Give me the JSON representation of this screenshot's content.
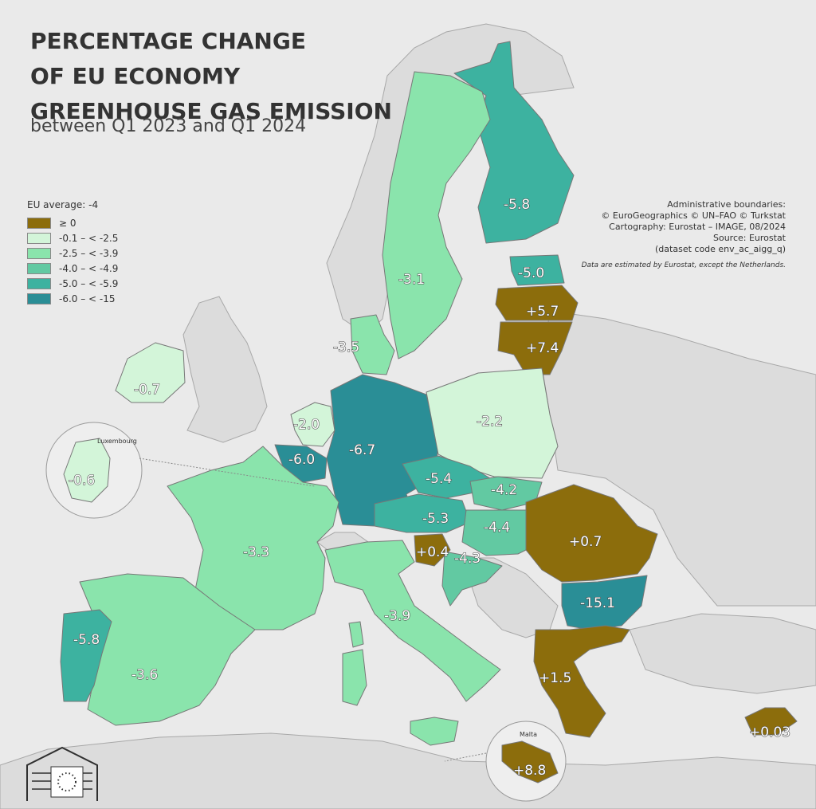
{
  "title_lines": [
    "PERCENTAGE CHANGE",
    "OF EU ECONOMY",
    "GREENHOUSE GAS EMISSION"
  ],
  "subtitle": "between Q1 2023 and Q1 2024",
  "legend": {
    "title": "EU average: -4",
    "items": [
      {
        "label": "≥ 0",
        "color": "#8c6d0c"
      },
      {
        "label": "-0.1 – < -2.5",
        "color": "#d3f5d9"
      },
      {
        "label": "-2.5 – < -3.9",
        "color": "#8ae4ac"
      },
      {
        "label": "-4.0 – < -4.9",
        "color": "#62c9a2"
      },
      {
        "label": "-5.0 – < -5.9",
        "color": "#3db2a0"
      },
      {
        "label": "-6.0 – < -15",
        "color": "#2a8e96"
      }
    ]
  },
  "credits": [
    "Administrative boundaries:",
    "© EuroGeographics © UN–FAO © Turkstat",
    "Cartography: Eurostat – IMAGE, 08/2024",
    "Source: Eurostat",
    "(dataset code env_ac_aigg_q)"
  ],
  "note": "Data are estimated by Eurostat, except the Netherlands.",
  "insets": {
    "luxembourg": "Luxembourg",
    "malta": "Malta"
  },
  "regions": [
    {
      "label": "-5.8",
      "color": "#3db2a0"
    },
    {
      "label": "-3.1",
      "color": "#8ae4ac"
    },
    {
      "label": "-5.0",
      "color": "#3db2a0"
    },
    {
      "label": "+5.7",
      "color": "#8c6d0c"
    },
    {
      "label": "+7.4",
      "color": "#8c6d0c"
    },
    {
      "label": "-3.5",
      "color": "#8ae4ac"
    },
    {
      "label": "-0.7",
      "color": "#d3f5d9"
    },
    {
      "label": "-2.0",
      "color": "#d3f5d9"
    },
    {
      "label": "-6.0",
      "color": "#2a8e96"
    },
    {
      "label": "-6.7",
      "color": "#2a8e96"
    },
    {
      "label": "-2.2",
      "color": "#d3f5d9"
    },
    {
      "label": "-0.6",
      "color": "#d3f5d9"
    },
    {
      "label": "-5.4",
      "color": "#3db2a0"
    },
    {
      "label": "-4.2",
      "color": "#62c9a2"
    },
    {
      "label": "-5.3",
      "color": "#3db2a0"
    },
    {
      "label": "-4.4",
      "color": "#62c9a2"
    },
    {
      "label": "+0.4",
      "color": "#8c6d0c"
    },
    {
      "label": "-4.3",
      "color": "#62c9a2"
    },
    {
      "label": "+0.7",
      "color": "#8c6d0c"
    },
    {
      "label": "-3.3",
      "color": "#8ae4ac"
    },
    {
      "label": "-3.9",
      "color": "#8ae4ac"
    },
    {
      "label": "-15.1",
      "color": "#2a8e96"
    },
    {
      "label": "-5.8",
      "color": "#3db2a0"
    },
    {
      "label": "-3.6",
      "color": "#8ae4ac"
    },
    {
      "label": "+1.5",
      "color": "#8c6d0c"
    },
    {
      "label": "+0.03",
      "color": "#8c6d0c"
    },
    {
      "label": "+8.8",
      "color": "#8c6d0c"
    }
  ]
}
